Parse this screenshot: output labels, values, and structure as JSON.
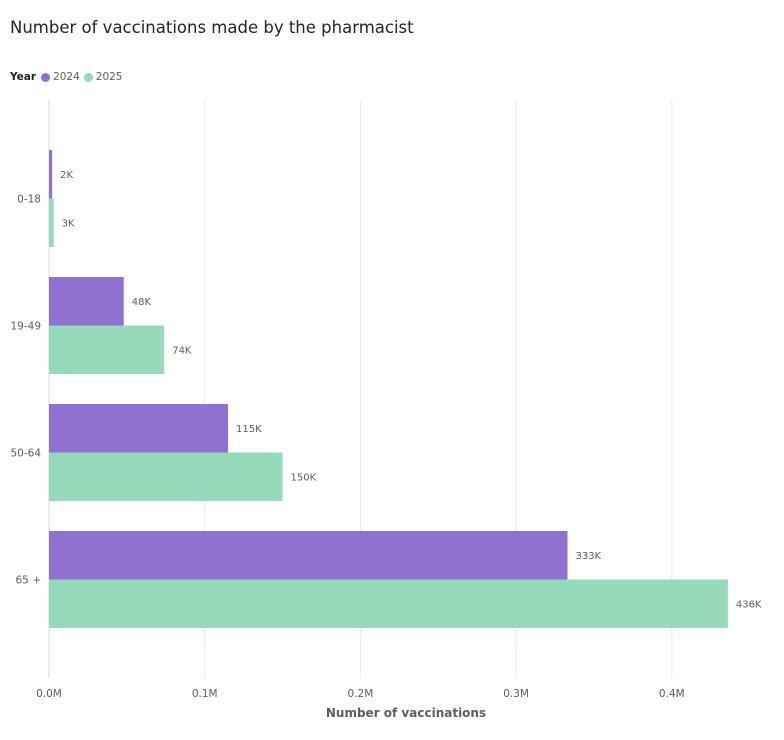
{
  "chart_data": {
    "type": "bar",
    "orientation": "horizontal",
    "title": "Number of vaccinations made by the pharmacist",
    "legend_title": "Year",
    "categories": [
      "0-18",
      "19-49",
      "50-64",
      "65 +"
    ],
    "series": [
      {
        "name": "2024",
        "color": "#8e71d1",
        "values": [
          2000,
          48000,
          115000,
          333000
        ],
        "labels": [
          "2K",
          "48K",
          "115K",
          "333K"
        ]
      },
      {
        "name": "2025",
        "color": "#97d9bb",
        "values": [
          3000,
          74000,
          150000,
          436000
        ],
        "labels": [
          "3K",
          "74K",
          "150K",
          "436K"
        ]
      }
    ],
    "xlabel": "Number of vaccinations",
    "ylabel": "",
    "xlim": [
      0,
      0.44
    ],
    "xunit_scale": 1000000,
    "xticks": [
      0,
      0.1,
      0.2,
      0.3,
      0.4
    ],
    "xtick_labels": [
      "0.0M",
      "0.1M",
      "0.2M",
      "0.3M",
      "0.4M"
    ],
    "grid": true,
    "legend_position": "top-left"
  }
}
